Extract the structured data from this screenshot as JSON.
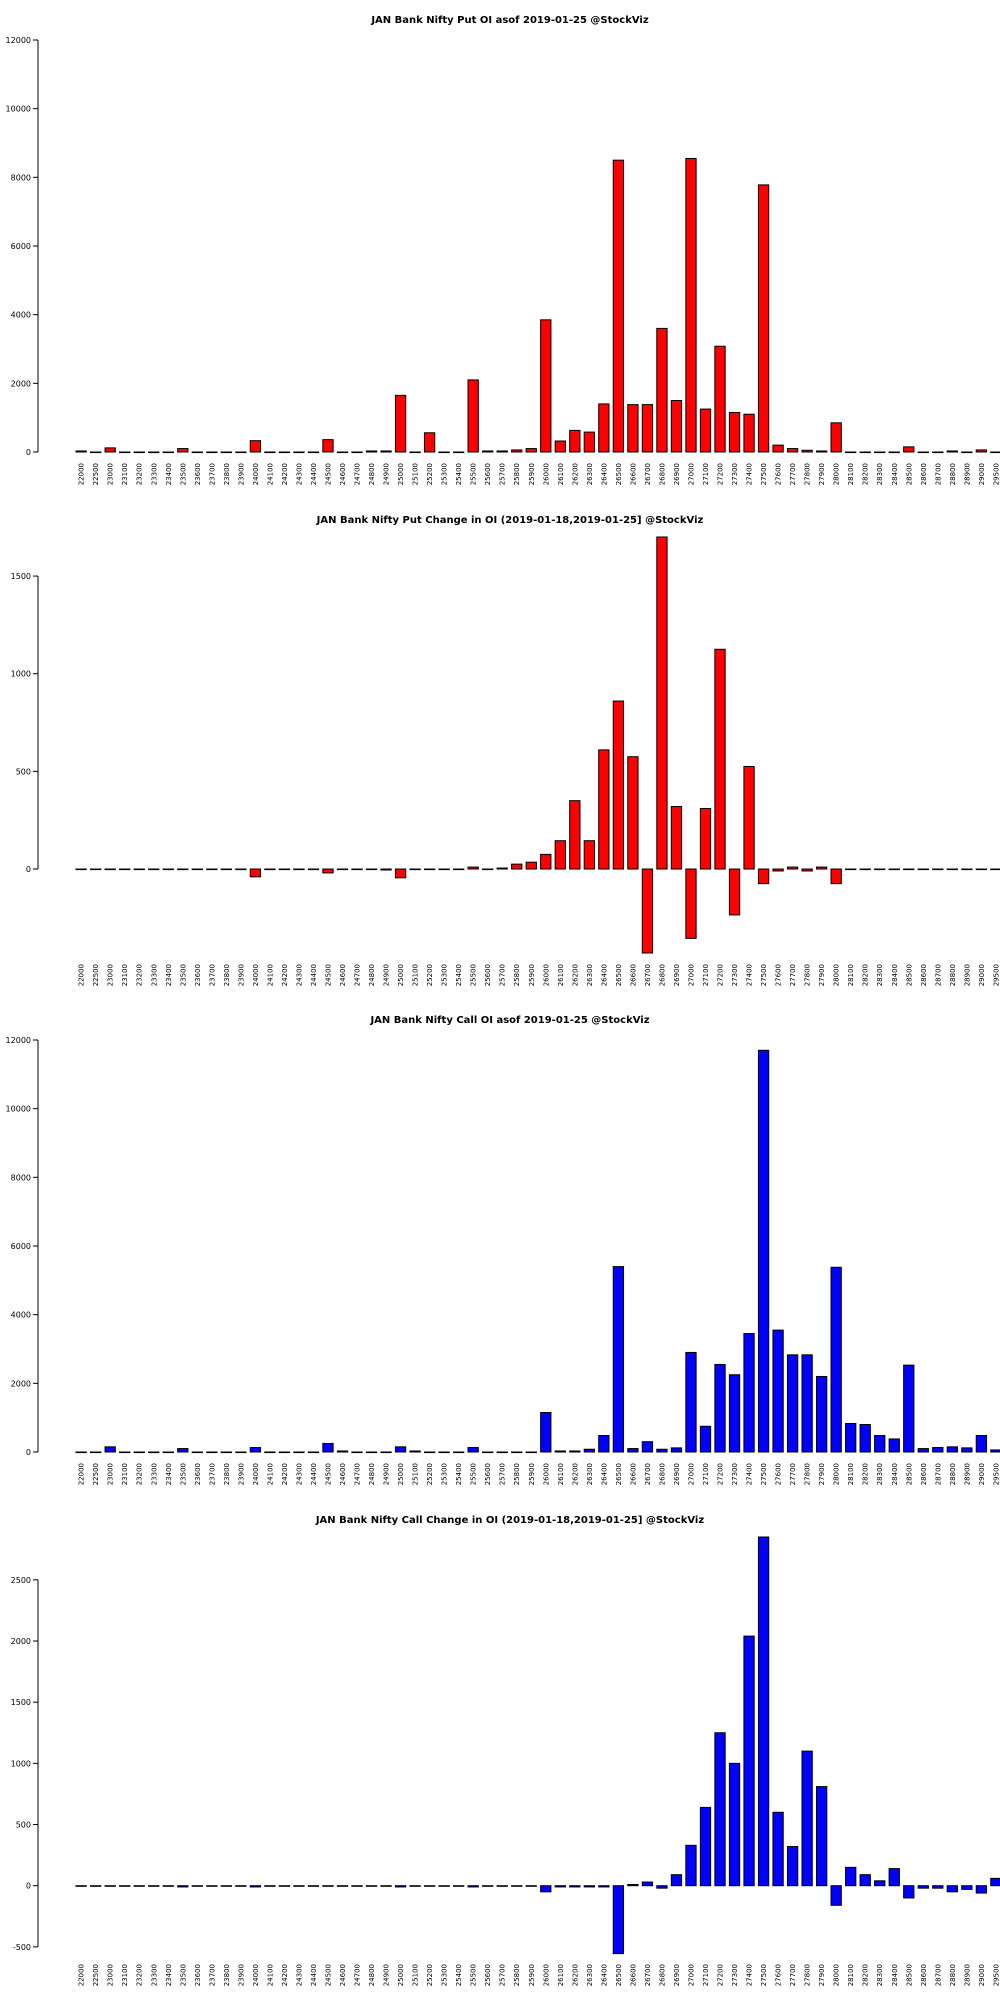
{
  "chart_data": [
    {
      "type": "bar",
      "title": "JAN Bank Nifty Put OI asof 2019-01-25 @StockViz",
      "xlabel": "",
      "ylabel": "",
      "ylim": [
        0,
        12000
      ],
      "yticks": [
        0,
        2000,
        4000,
        6000,
        8000,
        10000,
        12000
      ],
      "grid": false,
      "color": "#ff0000",
      "categories": [
        "22000",
        "22500",
        "23000",
        "23100",
        "23200",
        "23300",
        "23400",
        "23500",
        "23600",
        "23700",
        "23800",
        "23900",
        "24000",
        "24100",
        "24200",
        "24300",
        "24400",
        "24500",
        "24600",
        "24700",
        "24800",
        "24900",
        "25000",
        "25100",
        "25200",
        "25300",
        "25400",
        "25500",
        "25600",
        "25700",
        "25800",
        "25900",
        "26000",
        "26100",
        "26200",
        "26300",
        "26400",
        "26500",
        "26600",
        "26700",
        "26800",
        "26900",
        "27000",
        "27100",
        "27200",
        "27300",
        "27400",
        "27500",
        "27600",
        "27700",
        "27800",
        "27900",
        "28000",
        "28100",
        "28200",
        "28300",
        "28400",
        "28500",
        "28600",
        "28700",
        "28800",
        "28900",
        "29000",
        "29500"
      ],
      "values": [
        30,
        0,
        120,
        0,
        0,
        0,
        0,
        100,
        0,
        0,
        0,
        0,
        330,
        0,
        0,
        0,
        0,
        360,
        0,
        0,
        30,
        30,
        1650,
        0,
        560,
        0,
        0,
        2100,
        30,
        30,
        60,
        100,
        3850,
        320,
        630,
        580,
        1400,
        8500,
        1380,
        1380,
        3600,
        1500,
        8550,
        1250,
        3080,
        1150,
        1100,
        7780,
        200,
        100,
        50,
        30,
        850,
        0,
        0,
        0,
        0,
        150,
        0,
        0,
        30,
        0,
        60,
        0
      ]
    },
    {
      "type": "bar",
      "title": "JAN Bank Nifty Put Change in OI (2019-01-18,2019-01-25] @StockViz",
      "xlabel": "",
      "ylabel": "",
      "ylim": [
        -430,
        1700
      ],
      "yticks": [
        0,
        500,
        1000,
        1500
      ],
      "grid": false,
      "color": "#ff0000",
      "categories": [
        "22000",
        "22500",
        "23000",
        "23100",
        "23200",
        "23300",
        "23400",
        "23500",
        "23600",
        "23700",
        "23800",
        "23900",
        "24000",
        "24100",
        "24200",
        "24300",
        "24400",
        "24500",
        "24600",
        "24700",
        "24800",
        "24900",
        "25000",
        "25100",
        "25200",
        "25300",
        "25400",
        "25500",
        "25600",
        "25700",
        "25800",
        "25900",
        "26000",
        "26100",
        "26200",
        "26300",
        "26400",
        "26500",
        "26600",
        "26700",
        "26800",
        "26900",
        "27000",
        "27100",
        "27200",
        "27300",
        "27400",
        "27500",
        "27600",
        "27700",
        "27800",
        "27900",
        "28000",
        "28100",
        "28200",
        "28300",
        "28400",
        "28500",
        "28600",
        "28700",
        "28800",
        "28900",
        "29000",
        "29500"
      ],
      "values": [
        0,
        0,
        0,
        0,
        0,
        0,
        0,
        0,
        0,
        0,
        0,
        0,
        -40,
        0,
        0,
        0,
        0,
        -20,
        0,
        0,
        0,
        -5,
        -45,
        0,
        0,
        0,
        0,
        10,
        0,
        5,
        25,
        35,
        75,
        145,
        350,
        145,
        610,
        860,
        575,
        -430,
        1700,
        320,
        -355,
        310,
        1125,
        -235,
        525,
        -75,
        -10,
        10,
        -10,
        10,
        -75,
        0,
        0,
        0,
        0,
        0,
        0,
        0,
        0,
        0,
        0,
        0
      ]
    },
    {
      "type": "bar",
      "title": "JAN Bank Nifty Call OI asof 2019-01-25 @StockViz",
      "xlabel": "",
      "ylabel": "",
      "ylim": [
        0,
        12000
      ],
      "yticks": [
        0,
        2000,
        4000,
        6000,
        8000,
        10000,
        12000
      ],
      "grid": false,
      "color": "#0000ff",
      "categories": [
        "22000",
        "22500",
        "23000",
        "23100",
        "23200",
        "23300",
        "23400",
        "23500",
        "23600",
        "23700",
        "23800",
        "23900",
        "24000",
        "24100",
        "24200",
        "24300",
        "24400",
        "24500",
        "24600",
        "24700",
        "24800",
        "24900",
        "25000",
        "25100",
        "25200",
        "25300",
        "25400",
        "25500",
        "25600",
        "25700",
        "25800",
        "25900",
        "26000",
        "26100",
        "26200",
        "26300",
        "26400",
        "26500",
        "26600",
        "26700",
        "26800",
        "26900",
        "27000",
        "27100",
        "27200",
        "27300",
        "27400",
        "27500",
        "27600",
        "27700",
        "27800",
        "27900",
        "28000",
        "28100",
        "28200",
        "28300",
        "28400",
        "28500",
        "28600",
        "28700",
        "28800",
        "28900",
        "29000",
        "29500"
      ],
      "values": [
        0,
        0,
        150,
        0,
        0,
        0,
        0,
        100,
        0,
        0,
        0,
        0,
        130,
        0,
        0,
        0,
        0,
        250,
        30,
        0,
        0,
        0,
        150,
        30,
        0,
        0,
        0,
        130,
        0,
        0,
        0,
        0,
        1150,
        30,
        30,
        80,
        480,
        5400,
        100,
        300,
        80,
        120,
        2900,
        750,
        2550,
        2250,
        3450,
        11700,
        3550,
        2830,
        2830,
        2200,
        5380,
        830,
        800,
        480,
        380,
        2530,
        100,
        130,
        150,
        120,
        480,
        60
      ]
    },
    {
      "type": "bar",
      "title": "JAN Bank Nifty Call Change in OI (2019-01-18,2019-01-25] @StockViz",
      "xlabel": "",
      "ylabel": "",
      "ylim": [
        -550,
        2850
      ],
      "yticks": [
        -500,
        0,
        500,
        1000,
        1500,
        2000,
        2500
      ],
      "grid": false,
      "color": "#0000ff",
      "categories": [
        "22000",
        "22500",
        "23000",
        "23100",
        "23200",
        "23300",
        "23400",
        "23500",
        "23600",
        "23700",
        "23800",
        "23900",
        "24000",
        "24100",
        "24200",
        "24300",
        "24400",
        "24500",
        "24600",
        "24700",
        "24800",
        "24900",
        "25000",
        "25100",
        "25200",
        "25300",
        "25400",
        "25500",
        "25600",
        "25700",
        "25800",
        "25900",
        "26000",
        "26100",
        "26200",
        "26300",
        "26400",
        "26500",
        "26600",
        "26700",
        "26800",
        "26900",
        "27000",
        "27100",
        "27200",
        "27300",
        "27400",
        "27500",
        "27600",
        "27700",
        "27800",
        "27900",
        "28000",
        "28100",
        "28200",
        "28300",
        "28400",
        "28500",
        "28600",
        "28700",
        "28800",
        "28900",
        "29000",
        "29500"
      ],
      "values": [
        0,
        0,
        0,
        0,
        0,
        0,
        0,
        -10,
        0,
        0,
        0,
        0,
        -10,
        0,
        0,
        0,
        0,
        0,
        0,
        0,
        0,
        0,
        -10,
        0,
        0,
        0,
        0,
        -10,
        0,
        0,
        0,
        0,
        -50,
        -10,
        -10,
        -10,
        -10,
        -555,
        10,
        30,
        -20,
        90,
        330,
        640,
        1250,
        1000,
        2040,
        2850,
        600,
        320,
        1100,
        810,
        -160,
        150,
        90,
        40,
        140,
        -100,
        -20,
        -20,
        -50,
        -30,
        -60,
        60
      ]
    }
  ]
}
